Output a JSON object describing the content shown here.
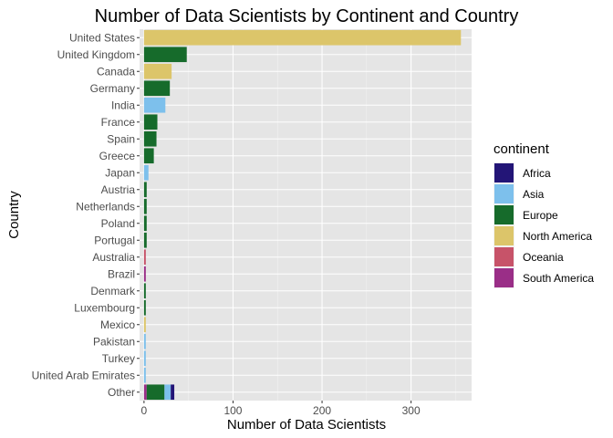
{
  "chart_data": {
    "type": "bar",
    "orientation": "horizontal",
    "stacked": true,
    "title": "Number of Data Scientists by Continent and Country",
    "xlabel": "Number of Data Scientists",
    "ylabel": "Country",
    "xlim": [
      -5,
      368
    ],
    "xticks": [
      0,
      100,
      200,
      300
    ],
    "grid": true,
    "legend": {
      "title": "continent",
      "placement": "right"
    },
    "continents": [
      {
        "name": "Africa",
        "color": "#231577"
      },
      {
        "name": "Asia",
        "color": "#7dc0ec"
      },
      {
        "name": "Europe",
        "color": "#166b2b"
      },
      {
        "name": "North America",
        "color": "#dcc56a"
      },
      {
        "name": "Oceania",
        "color": "#c75369"
      },
      {
        "name": "South America",
        "color": "#9a2e87"
      }
    ],
    "categories": [
      "United States",
      "United Kingdom",
      "Canada",
      "Germany",
      "India",
      "France",
      "Spain",
      "Greece",
      "Japan",
      "Austria",
      "Netherlands",
      "Poland",
      "Portugal",
      "Australia",
      "Brazil",
      "Denmark",
      "Luxembourg",
      "Mexico",
      "Pakistan",
      "Turkey",
      "United Arab Emirates",
      "Other"
    ],
    "bars": [
      {
        "country": "United States",
        "segments": [
          {
            "continent": "North America",
            "value": 356
          }
        ]
      },
      {
        "country": "United Kingdom",
        "segments": [
          {
            "continent": "Europe",
            "value": 48
          }
        ]
      },
      {
        "country": "Canada",
        "segments": [
          {
            "continent": "North America",
            "value": 31
          }
        ]
      },
      {
        "country": "Germany",
        "segments": [
          {
            "continent": "Europe",
            "value": 29
          }
        ]
      },
      {
        "country": "India",
        "segments": [
          {
            "continent": "Asia",
            "value": 24
          }
        ]
      },
      {
        "country": "France",
        "segments": [
          {
            "continent": "Europe",
            "value": 15
          }
        ]
      },
      {
        "country": "Spain",
        "segments": [
          {
            "continent": "Europe",
            "value": 14
          }
        ]
      },
      {
        "country": "Greece",
        "segments": [
          {
            "continent": "Europe",
            "value": 11
          }
        ]
      },
      {
        "country": "Japan",
        "segments": [
          {
            "continent": "Asia",
            "value": 5
          }
        ]
      },
      {
        "country": "Austria",
        "segments": [
          {
            "continent": "Europe",
            "value": 3
          }
        ]
      },
      {
        "country": "Netherlands",
        "segments": [
          {
            "continent": "Europe",
            "value": 3
          }
        ]
      },
      {
        "country": "Poland",
        "segments": [
          {
            "continent": "Europe",
            "value": 3
          }
        ]
      },
      {
        "country": "Portugal",
        "segments": [
          {
            "continent": "Europe",
            "value": 3
          }
        ]
      },
      {
        "country": "Australia",
        "segments": [
          {
            "continent": "Oceania",
            "value": 2
          }
        ]
      },
      {
        "country": "Brazil",
        "segments": [
          {
            "continent": "South America",
            "value": 2
          }
        ]
      },
      {
        "country": "Denmark",
        "segments": [
          {
            "continent": "Europe",
            "value": 2
          }
        ]
      },
      {
        "country": "Luxembourg",
        "segments": [
          {
            "continent": "Europe",
            "value": 2
          }
        ]
      },
      {
        "country": "Mexico",
        "segments": [
          {
            "continent": "North America",
            "value": 2
          }
        ]
      },
      {
        "country": "Pakistan",
        "segments": [
          {
            "continent": "Asia",
            "value": 2
          }
        ]
      },
      {
        "country": "Turkey",
        "segments": [
          {
            "continent": "Asia",
            "value": 2
          }
        ]
      },
      {
        "country": "United Arab Emirates",
        "segments": [
          {
            "continent": "Asia",
            "value": 2
          }
        ]
      },
      {
        "country": "Other",
        "segments": [
          {
            "continent": "South America",
            "value": 3
          },
          {
            "continent": "Europe",
            "value": 20
          },
          {
            "continent": "Asia",
            "value": 7
          },
          {
            "continent": "Africa",
            "value": 4
          }
        ]
      }
    ]
  }
}
